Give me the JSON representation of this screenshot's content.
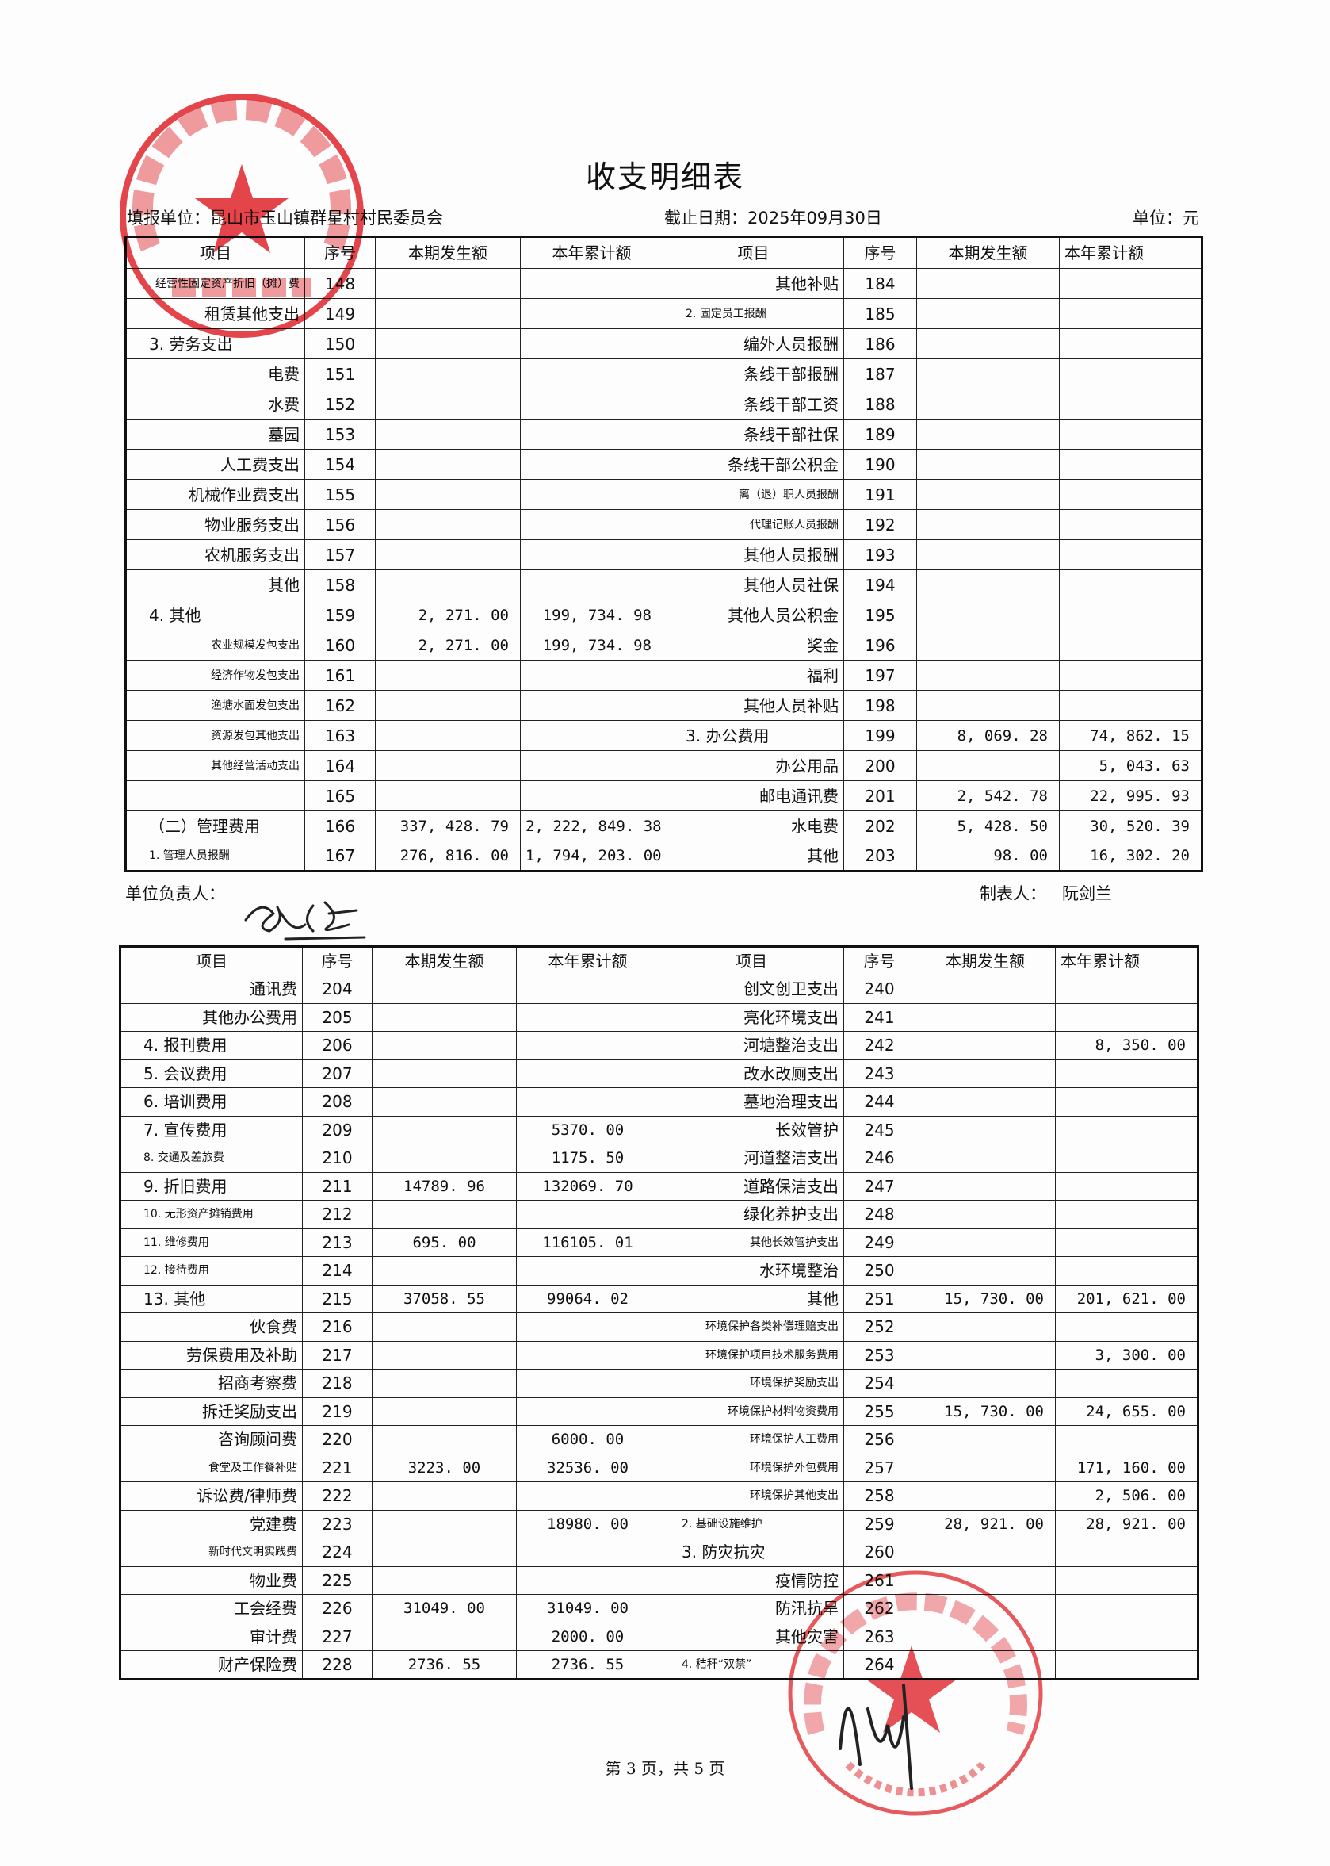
{
  "title": "收支明细表",
  "header": {
    "unit_label": "填报单位：昆山市玉山镇群星村村民委员会",
    "date_label": "截止日期：2025年09月30日",
    "currency_label": "单位：元"
  },
  "columns": [
    "项目",
    "序号",
    "本期发生额",
    "本年累计额",
    "项目",
    "序号",
    "本期发生额",
    "本年累计额"
  ],
  "table1_rows": [
    [
      "经营性固定资产折旧（摊）费",
      "148",
      "",
      "",
      "其他补贴",
      "184",
      "",
      ""
    ],
    [
      "租赁其他支出",
      "149",
      "",
      "",
      "2. 固定员工报酬",
      "185",
      "",
      ""
    ],
    [
      "3. 劳务支出",
      "150",
      "",
      "",
      "编外人员报酬",
      "186",
      "",
      ""
    ],
    [
      "电费",
      "151",
      "",
      "",
      "条线干部报酬",
      "187",
      "",
      ""
    ],
    [
      "水费",
      "152",
      "",
      "",
      "条线干部工资",
      "188",
      "",
      ""
    ],
    [
      "墓园",
      "153",
      "",
      "",
      "条线干部社保",
      "189",
      "",
      ""
    ],
    [
      "人工费支出",
      "154",
      "",
      "",
      "条线干部公积金",
      "190",
      "",
      ""
    ],
    [
      "机械作业费支出",
      "155",
      "",
      "",
      "离（退）职人员报酬",
      "191",
      "",
      ""
    ],
    [
      "物业服务支出",
      "156",
      "",
      "",
      "代理记账人员报酬",
      "192",
      "",
      ""
    ],
    [
      "农机服务支出",
      "157",
      "",
      "",
      "其他人员报酬",
      "193",
      "",
      ""
    ],
    [
      "其他",
      "158",
      "",
      "",
      "其他人员社保",
      "194",
      "",
      ""
    ],
    [
      "4. 其他",
      "159",
      "2, 271. 00",
      "199, 734. 98",
      "其他人员公积金",
      "195",
      "",
      ""
    ],
    [
      "农业规模发包支出",
      "160",
      "2, 271. 00",
      "199, 734. 98",
      "奖金",
      "196",
      "",
      ""
    ],
    [
      "经济作物发包支出",
      "161",
      "",
      "",
      "福利",
      "197",
      "",
      ""
    ],
    [
      "渔塘水面发包支出",
      "162",
      "",
      "",
      "其他人员补贴",
      "198",
      "",
      ""
    ],
    [
      "资源发包其他支出",
      "163",
      "",
      "",
      "3. 办公费用",
      "199",
      "8, 069. 28",
      "74, 862. 15"
    ],
    [
      "其他经营活动支出",
      "164",
      "",
      "",
      "办公用品",
      "200",
      "",
      "5, 043. 63"
    ],
    [
      "",
      "165",
      "",
      "",
      "邮电通讯费",
      "201",
      "2, 542. 78",
      "22, 995. 93"
    ],
    [
      "（二）管理费用",
      "166",
      "337, 428. 79",
      "2, 222, 849. 38",
      "水电费",
      "202",
      "5, 428. 50",
      "30, 520. 39"
    ],
    [
      "1. 管理人员报酬",
      "167",
      "276, 816. 00",
      "1, 794, 203. 00",
      "其他",
      "203",
      "98. 00",
      "16, 302. 20"
    ]
  ],
  "signatures": {
    "head_label": "单位负责人：",
    "preparer_label": "制表人：",
    "preparer_name": "阮剑兰"
  },
  "table2_rows": [
    [
      "通讯费",
      "204",
      "",
      "",
      "创文创卫支出",
      "240",
      "",
      ""
    ],
    [
      "其他办公费用",
      "205",
      "",
      "",
      "亮化环境支出",
      "241",
      "",
      ""
    ],
    [
      "4. 报刊费用",
      "206",
      "",
      "",
      "河塘整治支出",
      "242",
      "",
      "8, 350. 00"
    ],
    [
      "5. 会议费用",
      "207",
      "",
      "",
      "改水改厕支出",
      "243",
      "",
      ""
    ],
    [
      "6. 培训费用",
      "208",
      "",
      "",
      "墓地治理支出",
      "244",
      "",
      ""
    ],
    [
      "7. 宣传费用",
      "209",
      "",
      "5370. 00",
      "长效管护",
      "245",
      "",
      ""
    ],
    [
      "8. 交通及差旅费",
      "210",
      "",
      "1175. 50",
      "河道整洁支出",
      "246",
      "",
      ""
    ],
    [
      "9. 折旧费用",
      "211",
      "14789. 96",
      "132069. 70",
      "道路保洁支出",
      "247",
      "",
      ""
    ],
    [
      "10. 无形资产摊销费用",
      "212",
      "",
      "",
      "绿化养护支出",
      "248",
      "",
      ""
    ],
    [
      "11. 维修费用",
      "213",
      "695. 00",
      "116105. 01",
      "其他长效管护支出",
      "249",
      "",
      ""
    ],
    [
      "12. 接待费用",
      "214",
      "",
      "",
      "水环境整治",
      "250",
      "",
      ""
    ],
    [
      "13. 其他",
      "215",
      "37058. 55",
      "99064. 02",
      "其他",
      "251",
      "15, 730. 00",
      "201, 621. 00"
    ],
    [
      "伙食费",
      "216",
      "",
      "",
      "环境保护各类补偿理赔支出",
      "252",
      "",
      ""
    ],
    [
      "劳保费用及补助",
      "217",
      "",
      "",
      "环境保护项目技术服务费用",
      "253",
      "",
      "3, 300. 00"
    ],
    [
      "招商考察费",
      "218",
      "",
      "",
      "环境保护奖励支出",
      "254",
      "",
      ""
    ],
    [
      "拆迁奖励支出",
      "219",
      "",
      "",
      "环境保护材料物资费用",
      "255",
      "15, 730. 00",
      "24, 655. 00"
    ],
    [
      "咨询顾问费",
      "220",
      "",
      "6000. 00",
      "环境保护人工费用",
      "256",
      "",
      ""
    ],
    [
      "食堂及工作餐补贴",
      "221",
      "3223. 00",
      "32536. 00",
      "环境保护外包费用",
      "257",
      "",
      "171, 160. 00"
    ],
    [
      "诉讼费/律师费",
      "222",
      "",
      "",
      "环境保护其他支出",
      "258",
      "",
      "2, 506. 00"
    ],
    [
      "党建费",
      "223",
      "",
      "18980. 00",
      "2. 基础设施维护",
      "259",
      "28, 921. 00",
      "28, 921. 00"
    ],
    [
      "新时代文明实践费",
      "224",
      "",
      "",
      "3. 防灾抗灾",
      "260",
      "",
      ""
    ],
    [
      "物业费",
      "225",
      "",
      "",
      "疫情防控",
      "261",
      "",
      ""
    ],
    [
      "工会经费",
      "226",
      "31049. 00",
      "31049. 00",
      "防汛抗旱",
      "262",
      "",
      ""
    ],
    [
      "审计费",
      "227",
      "",
      "2000. 00",
      "其他灾害",
      "263",
      "",
      ""
    ],
    [
      "财产保险费",
      "228",
      "2736. 55",
      "2736. 55",
      "4. 秸秆“双禁”",
      "264",
      "",
      ""
    ]
  ],
  "footer": {
    "page_label": "第 3 页，共 5 页"
  },
  "stamps": {
    "village_committee": "昆山市玉山镇群星村村民委员会",
    "supervision_committee": "昆山市玉山镇群星村村务监督委员会",
    "supervision_code": "3205830514689",
    "color": "#e0242a"
  }
}
